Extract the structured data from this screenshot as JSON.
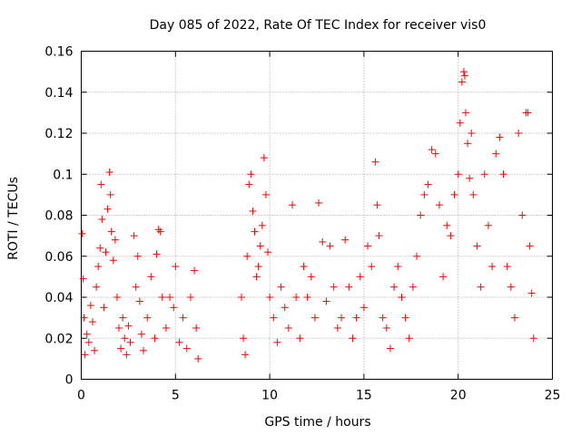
{
  "chart_data": {
    "type": "scatter",
    "title": "Day 085 of 2022, Rate Of TEC Index for receiver vis0",
    "xlabel": "GPS time / hours",
    "ylabel": "ROTI / TECUs",
    "xlim": [
      0,
      25
    ],
    "ylim": [
      0,
      0.16
    ],
    "x_ticks": [
      "0",
      "5",
      "10",
      "15",
      "20",
      "25"
    ],
    "y_ticks": [
      "0",
      "0.02",
      "0.04",
      "0.06",
      "0.08",
      "0.1",
      "0.12",
      "0.14",
      "0.16"
    ],
    "x_tick_values": [
      0,
      5,
      10,
      15,
      20,
      25
    ],
    "y_tick_values": [
      0,
      0.02,
      0.04,
      0.06,
      0.08,
      0.1,
      0.12,
      0.14,
      0.16
    ],
    "grid": true,
    "marker": "+",
    "color": "#ff0000",
    "series": [
      {
        "points": [
          [
            0.05,
            0.071
          ],
          [
            0.1,
            0.049
          ],
          [
            0.15,
            0.03
          ],
          [
            0.2,
            0.012
          ],
          [
            0.3,
            0.022
          ],
          [
            0.4,
            0.018
          ],
          [
            0.5,
            0.036
          ],
          [
            0.6,
            0.028
          ],
          [
            0.7,
            0.014
          ],
          [
            0.8,
            0.045
          ],
          [
            0.9,
            0.055
          ],
          [
            1.0,
            0.064
          ],
          [
            1.05,
            0.095
          ],
          [
            1.1,
            0.078
          ],
          [
            1.2,
            0.035
          ],
          [
            1.3,
            0.062
          ],
          [
            1.4,
            0.083
          ],
          [
            1.5,
            0.101
          ],
          [
            1.55,
            0.09
          ],
          [
            1.6,
            0.072
          ],
          [
            1.7,
            0.058
          ],
          [
            1.8,
            0.068
          ],
          [
            1.9,
            0.04
          ],
          [
            2.0,
            0.025
          ],
          [
            2.1,
            0.015
          ],
          [
            2.2,
            0.03
          ],
          [
            2.3,
            0.02
          ],
          [
            2.4,
            0.012
          ],
          [
            2.5,
            0.026
          ],
          [
            2.6,
            0.018
          ],
          [
            2.8,
            0.07
          ],
          [
            2.9,
            0.045
          ],
          [
            3.0,
            0.06
          ],
          [
            3.1,
            0.038
          ],
          [
            3.2,
            0.022
          ],
          [
            3.3,
            0.014
          ],
          [
            3.5,
            0.03
          ],
          [
            3.7,
            0.05
          ],
          [
            3.9,
            0.02
          ],
          [
            4.0,
            0.061
          ],
          [
            4.1,
            0.073
          ],
          [
            4.2,
            0.072
          ],
          [
            4.3,
            0.04
          ],
          [
            4.5,
            0.025
          ],
          [
            4.7,
            0.04
          ],
          [
            4.9,
            0.035
          ],
          [
            5.0,
            0.055
          ],
          [
            5.2,
            0.018
          ],
          [
            5.4,
            0.03
          ],
          [
            5.6,
            0.015
          ],
          [
            5.8,
            0.04
          ],
          [
            6.0,
            0.053
          ],
          [
            6.1,
            0.025
          ],
          [
            6.2,
            0.01
          ],
          [
            8.5,
            0.04
          ],
          [
            8.6,
            0.02
          ],
          [
            8.7,
            0.012
          ],
          [
            8.8,
            0.06
          ],
          [
            8.9,
            0.095
          ],
          [
            9.0,
            0.1
          ],
          [
            9.1,
            0.082
          ],
          [
            9.2,
            0.072
          ],
          [
            9.3,
            0.05
          ],
          [
            9.4,
            0.055
          ],
          [
            9.5,
            0.065
          ],
          [
            9.6,
            0.075
          ],
          [
            9.7,
            0.108
          ],
          [
            9.8,
            0.09
          ],
          [
            9.9,
            0.062
          ],
          [
            10.0,
            0.04
          ],
          [
            10.2,
            0.03
          ],
          [
            10.4,
            0.018
          ],
          [
            10.6,
            0.045
          ],
          [
            10.8,
            0.035
          ],
          [
            11.0,
            0.025
          ],
          [
            11.2,
            0.085
          ],
          [
            11.4,
            0.04
          ],
          [
            11.6,
            0.02
          ],
          [
            11.8,
            0.055
          ],
          [
            12.0,
            0.04
          ],
          [
            12.2,
            0.05
          ],
          [
            12.4,
            0.03
          ],
          [
            12.6,
            0.086
          ],
          [
            12.8,
            0.067
          ],
          [
            13.0,
            0.038
          ],
          [
            13.2,
            0.065
          ],
          [
            13.4,
            0.045
          ],
          [
            13.6,
            0.025
          ],
          [
            13.8,
            0.03
          ],
          [
            14.0,
            0.068
          ],
          [
            14.2,
            0.045
          ],
          [
            14.4,
            0.02
          ],
          [
            14.6,
            0.03
          ],
          [
            14.8,
            0.05
          ],
          [
            15.0,
            0.035
          ],
          [
            15.2,
            0.065
          ],
          [
            15.4,
            0.055
          ],
          [
            15.6,
            0.106
          ],
          [
            15.7,
            0.085
          ],
          [
            15.8,
            0.07
          ],
          [
            16.0,
            0.03
          ],
          [
            16.2,
            0.025
          ],
          [
            16.4,
            0.015
          ],
          [
            16.6,
            0.045
          ],
          [
            16.8,
            0.055
          ],
          [
            17.0,
            0.04
          ],
          [
            17.2,
            0.03
          ],
          [
            17.4,
            0.02
          ],
          [
            17.6,
            0.045
          ],
          [
            17.8,
            0.06
          ],
          [
            18.0,
            0.08
          ],
          [
            18.2,
            0.09
          ],
          [
            18.4,
            0.095
          ],
          [
            18.6,
            0.112
          ],
          [
            18.8,
            0.11
          ],
          [
            19.0,
            0.085
          ],
          [
            19.2,
            0.05
          ],
          [
            19.4,
            0.075
          ],
          [
            19.6,
            0.07
          ],
          [
            19.8,
            0.09
          ],
          [
            20.0,
            0.1
          ],
          [
            20.1,
            0.125
          ],
          [
            20.2,
            0.145
          ],
          [
            20.3,
            0.15
          ],
          [
            20.35,
            0.148
          ],
          [
            20.4,
            0.13
          ],
          [
            20.5,
            0.115
          ],
          [
            20.6,
            0.098
          ],
          [
            20.7,
            0.12
          ],
          [
            20.8,
            0.09
          ],
          [
            21.0,
            0.065
          ],
          [
            21.2,
            0.045
          ],
          [
            21.4,
            0.1
          ],
          [
            21.6,
            0.075
          ],
          [
            21.8,
            0.055
          ],
          [
            22.0,
            0.11
          ],
          [
            22.2,
            0.118
          ],
          [
            22.4,
            0.1
          ],
          [
            22.6,
            0.055
          ],
          [
            22.8,
            0.045
          ],
          [
            23.0,
            0.03
          ],
          [
            23.2,
            0.12
          ],
          [
            23.4,
            0.08
          ],
          [
            23.6,
            0.13
          ],
          [
            23.7,
            0.13
          ],
          [
            23.8,
            0.065
          ],
          [
            23.9,
            0.042
          ],
          [
            24.0,
            0.02
          ]
        ]
      }
    ]
  }
}
